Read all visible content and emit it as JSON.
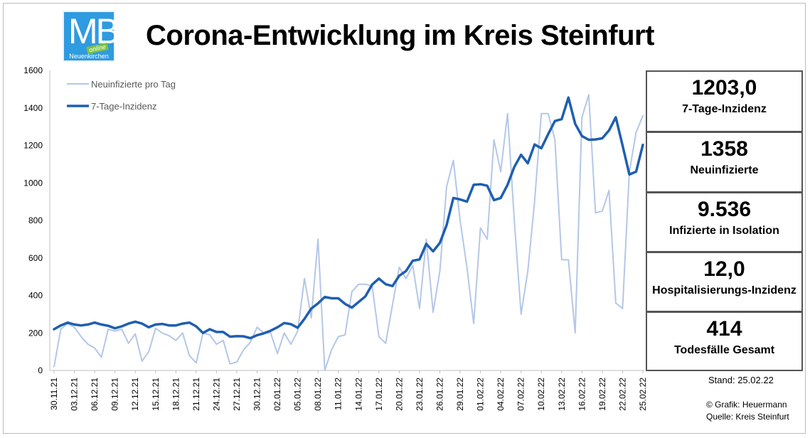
{
  "header": {
    "title": "Corona-Entwicklung im Kreis Steinfurt",
    "logo": {
      "letters": "MB",
      "badge": "online",
      "subtitle": "Neuenkirchen",
      "color": "#2f9be0"
    }
  },
  "chart_data": {
    "type": "line",
    "title": "",
    "xlabel": "",
    "ylabel": "",
    "ylim": [
      0,
      1600
    ],
    "yticks": [
      0,
      200,
      400,
      600,
      800,
      1000,
      1200,
      1400,
      1600
    ],
    "grid": false,
    "legend_position": "top-left",
    "x": [
      "30.11.21",
      "01.12.21",
      "02.12.21",
      "03.12.21",
      "04.12.21",
      "05.12.21",
      "06.12.21",
      "07.12.21",
      "08.12.21",
      "09.12.21",
      "10.12.21",
      "11.12.21",
      "12.12.21",
      "13.12.21",
      "14.12.21",
      "15.12.21",
      "16.12.21",
      "17.12.21",
      "18.12.21",
      "19.12.21",
      "20.12.21",
      "21.12.21",
      "22.12.21",
      "23.12.21",
      "24.12.21",
      "25.12.21",
      "26.12.21",
      "27.12.21",
      "28.12.21",
      "29.12.21",
      "30.12.21",
      "31.12.21",
      "01.01.22",
      "02.01.22",
      "03.01.22",
      "04.01.22",
      "05.01.22",
      "06.01.22",
      "07.01.22",
      "08.01.22",
      "09.01.22",
      "10.01.22",
      "11.01.22",
      "12.01.22",
      "13.01.22",
      "14.01.22",
      "15.01.22",
      "16.01.22",
      "17.01.22",
      "18.01.22",
      "19.01.22",
      "20.01.22",
      "21.01.22",
      "22.01.22",
      "23.01.22",
      "24.01.22",
      "25.01.22",
      "26.01.22",
      "27.01.22",
      "28.01.22",
      "29.01.22",
      "30.01.22",
      "31.01.22",
      "01.02.22",
      "02.02.22",
      "03.02.22",
      "04.02.22",
      "05.02.22",
      "06.02.22",
      "07.02.22",
      "08.02.22",
      "09.02.22",
      "10.02.22",
      "11.02.22",
      "12.02.22",
      "13.02.22",
      "14.02.22",
      "15.02.22",
      "16.02.22",
      "17.02.22",
      "18.02.22",
      "19.02.22",
      "20.02.22",
      "21.02.22",
      "22.02.22",
      "23.02.22",
      "24.02.22",
      "25.02.22"
    ],
    "xtick_labels": [
      "30.11.21",
      "03.12.21",
      "06.12.21",
      "09.12.21",
      "12.12.21",
      "15.12.21",
      "18.12.21",
      "21.12.21",
      "24.12.21",
      "27.12.21",
      "30.12.21",
      "02.01.22",
      "05.01.22",
      "08.01.22",
      "11.01.22",
      "14.01.22",
      "17.01.22",
      "20.01.22",
      "23.01.22",
      "26.01.22",
      "29.01.22",
      "01.02.22",
      "04.02.22",
      "07.02.22",
      "10.02.22",
      "13.02.22",
      "16.02.22",
      "19.02.22",
      "22.02.22",
      "25.02.22"
    ],
    "series": [
      {
        "name": "Neuinfizierte pro Tag",
        "color": "#b4c7e7",
        "values": [
          20,
          220,
          250,
          230,
          180,
          140,
          120,
          70,
          220,
          210,
          220,
          145,
          195,
          50,
          100,
          225,
          200,
          185,
          160,
          200,
          80,
          40,
          200,
          190,
          140,
          160,
          35,
          45,
          110,
          150,
          230,
          200,
          200,
          90,
          200,
          140,
          210,
          490,
          280,
          700,
          0,
          110,
          180,
          190,
          420,
          460,
          460,
          450,
          180,
          145,
          350,
          550,
          490,
          560,
          330,
          700,
          310,
          530,
          980,
          1120,
          800,
          550,
          250,
          760,
          700,
          1230,
          1060,
          1370,
          800,
          300,
          530,
          900,
          1370,
          1370,
          1230,
          590,
          590,
          200,
          1350,
          1470,
          840,
          850,
          960,
          360,
          330,
          1060,
          1270,
          1358
        ]
      },
      {
        "name": "7-Tage-Inzidenz",
        "color": "#1f5fb0",
        "values": [
          220,
          240,
          255,
          245,
          240,
          245,
          255,
          245,
          238,
          225,
          235,
          250,
          260,
          250,
          230,
          245,
          248,
          240,
          240,
          250,
          255,
          235,
          200,
          220,
          205,
          205,
          180,
          183,
          182,
          172,
          188,
          198,
          212,
          230,
          253,
          247,
          228,
          275,
          330,
          358,
          392,
          385,
          385,
          355,
          335,
          365,
          395,
          458,
          490,
          460,
          450,
          505,
          530,
          585,
          592,
          675,
          635,
          680,
          775,
          920,
          912,
          900,
          990,
          993,
          985,
          908,
          920,
          990,
          1085,
          1150,
          1105,
          1205,
          1185,
          1260,
          1330,
          1340,
          1455,
          1315,
          1250,
          1230,
          1232,
          1238,
          1280,
          1350,
          1200,
          1045,
          1060,
          1203
        ]
      }
    ]
  },
  "stats": [
    {
      "value": "1203,0",
      "label": "7-Tage-Inzidenz"
    },
    {
      "value": "1358",
      "label": "Neuinfizierte"
    },
    {
      "value": "9.536",
      "label": "Infizierte in Isolation"
    },
    {
      "value": "12,0",
      "label": "Hospitalisierungs-Inzidenz"
    },
    {
      "value": "414",
      "label": "Todesfälle Gesamt"
    }
  ],
  "footer": {
    "stand": "Stand: 25.02.22",
    "credit_line1": "© Grafik: Heuermann",
    "credit_line2": "Quelle: Kreis Steinfurt"
  }
}
